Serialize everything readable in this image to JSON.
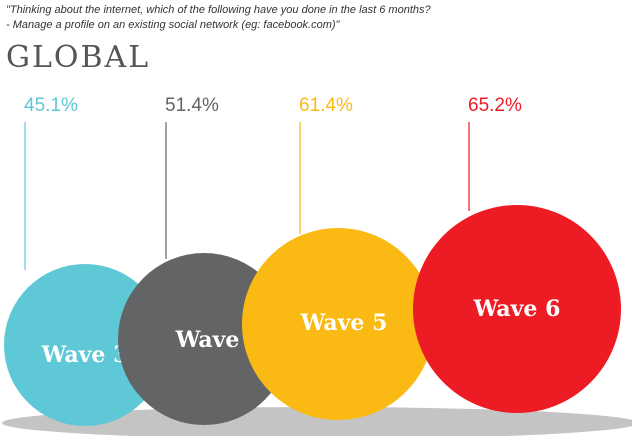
{
  "question": {
    "line1": "\"Thinking about the internet, which of the following have you done in the last 6 months?",
    "line2": "- Manage a profile on an existing social network (eg: facebook.com)\""
  },
  "region": "GLOBAL",
  "chart_data": {
    "type": "bubble",
    "categories": [
      "Wave 3",
      "Wave 4",
      "Wave 5",
      "Wave 6"
    ],
    "values": [
      45.1,
      51.4,
      61.4,
      65.2
    ],
    "value_labels": [
      "45.1%",
      "51.4%",
      "61.4%",
      "65.2%"
    ],
    "unit": "%",
    "colors": [
      "#5ec8d6",
      "#636466",
      "#fbb913",
      "#ed1c24"
    ],
    "shadow_color": "#c4c4c4"
  }
}
